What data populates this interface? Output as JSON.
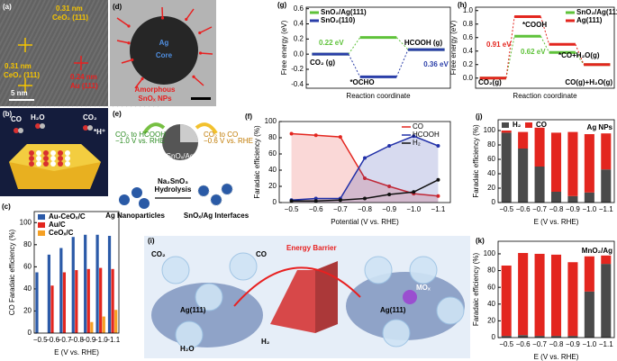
{
  "panels": {
    "a": {
      "label": "(a)",
      "texts": [
        "0.31 nm",
        "CeO₂ (111)",
        "0.31 nm",
        "CeO₂ (111)",
        "0.24 nm",
        "Au (111)",
        "5 nm"
      ]
    },
    "b": {
      "label": "(b)",
      "texts": [
        "CO",
        "H₂O",
        "CO₂",
        "*H⁺"
      ]
    },
    "d": {
      "label": "(d)",
      "texts": [
        "Ag",
        "Core",
        "Amorphous",
        "SnOₓ NPs"
      ]
    },
    "e": {
      "label": "(e)",
      "texts": [
        "CO₂ to HCOOH",
        "−1.0 V vs. RHE",
        "CO₂ to CO",
        "−0.6 V vs. RHE",
        "SnOₓ/Ag",
        "Na₂SnO₃",
        "Hydrolysis",
        "Ag Nanoparticles",
        "SnOₓ/Ag Interfaces"
      ]
    },
    "i": {
      "label": "(i)",
      "texts": [
        "CO₂",
        "CO",
        "Ag(111)",
        "H₂O",
        "H₂",
        "Energy Barrier",
        "Ag(111)",
        "MOₓ"
      ]
    }
  },
  "chart_data": [
    {
      "type": "bar",
      "panel_label": "(c)",
      "ylabel": "CO Faradaic efficiency (%)",
      "xlabel": "E (V vs. RHE)",
      "categories": [
        "−0.5",
        "−0.6",
        "−0.7",
        "−0.8",
        "−0.9",
        "−1.0",
        "−1.1"
      ],
      "series": [
        {
          "name": "Au-CeOₓ/C",
          "color": "#2b5aa8",
          "values": [
            55,
            71,
            77,
            87,
            89,
            89,
            88
          ]
        },
        {
          "name": "Au/C",
          "color": "#e3261f",
          "values": [
            null,
            43,
            55,
            57,
            58,
            59,
            58
          ]
        },
        {
          "name": "CeOₓ/C",
          "color": "#f5a024",
          "values": [
            null,
            null,
            null,
            null,
            10,
            15,
            21
          ]
        }
      ],
      "ylim": [
        0,
        110
      ],
      "yticks": [
        0,
        20,
        40,
        60,
        80,
        100
      ],
      "legend": "upper left"
    },
    {
      "type": "line",
      "panel_label": "(f)",
      "ylabel": "Faradaic efficiency (%)",
      "xlabel": "Potential (V vs. RHE)",
      "categories": [
        "−0.5",
        "−0.6",
        "−0.7",
        "−0.8",
        "−0.9",
        "−1.0",
        "−1.1"
      ],
      "series": [
        {
          "name": "CO",
          "color": "#e3261f",
          "values": [
            85,
            83,
            81,
            30,
            20,
            11,
            8
          ]
        },
        {
          "name": "HCOOH",
          "color": "#2130a8",
          "values": [
            3,
            5,
            5,
            55,
            70,
            82,
            70
          ]
        },
        {
          "name": "H₂",
          "color": "#111111",
          "values": [
            2,
            2,
            3,
            5,
            10,
            13,
            28
          ]
        }
      ],
      "ylim": [
        0,
        100
      ],
      "yticks": [
        0,
        20,
        40,
        60,
        80,
        100
      ],
      "legend": "upper right"
    },
    {
      "type": "energy",
      "panel_label": "(g)",
      "ylabel": "Free energy (eV)",
      "xlabel": "Reaction coordinate",
      "series": [
        {
          "name": "SnO₂/Ag(111)",
          "color": "#5fc23a",
          "values": [
            0,
            0.22,
            0.06
          ]
        },
        {
          "name": "SnO₂(110)",
          "color": "#2a3ea8",
          "values": [
            0,
            -0.3,
            0.06
          ]
        }
      ],
      "annotations": [
        "CO₂ (g)",
        "*OCHO",
        "HCOOH (g)",
        "0.22 eV",
        "0.36 eV"
      ],
      "ylim": [
        -0.45,
        0.62
      ],
      "yticks": [
        -0.4,
        -0.2,
        {
          "value": 0,
          "label": "0.0"
        },
        0.2,
        0.4,
        0.6
      ],
      "legend": "upper left"
    },
    {
      "type": "energy",
      "panel_label": "(h)",
      "ylabel": "Free energy (eV)",
      "xlabel": "Reaction coordinate",
      "series": [
        {
          "name": "SnO₂/Ag(111)",
          "color": "#5fc23a",
          "values": [
            0,
            0.62,
            0.38,
            0.2
          ]
        },
        {
          "name": "Ag(111)",
          "color": "#e3261f",
          "values": [
            0,
            0.91,
            0.5,
            0.2
          ]
        }
      ],
      "annotations": [
        "CO₂(g)",
        "*COOH",
        "*CO+H₂O(g)",
        "CO(g)+H₂O(g)",
        "0.91 eV",
        "0.62 eV"
      ],
      "ylim": [
        -0.15,
        1.05
      ],
      "yticks": [
        {
          "value": 0,
          "label": "0.0"
        },
        0.2,
        0.4,
        0.6,
        0.8,
        {
          "value": 1,
          "label": "1.0"
        }
      ],
      "legend": "upper right"
    },
    {
      "type": "stacked",
      "panel_label": "(j)",
      "ylabel": "Faradaic efficiency (%)",
      "xlabel": "E (V vs. RHE)",
      "categories": [
        "−0.5",
        "−0.6",
        "−0.7",
        "−0.8",
        "−0.9",
        "−1.0",
        "−1.1"
      ],
      "series": [
        {
          "name": "H₂",
          "color": "#4a4a4a",
          "values": [
            97,
            75,
            50,
            15,
            9,
            14,
            46
          ]
        },
        {
          "name": "CO",
          "color": "#e3261f",
          "values": [
            3,
            23,
            54,
            82,
            89,
            81,
            50
          ]
        }
      ],
      "annotations": [
        "Ag NPs"
      ],
      "ylim": [
        0,
        115
      ],
      "yticks": [
        0,
        20,
        40,
        60,
        80,
        100
      ],
      "legend": "upper left"
    },
    {
      "type": "stacked",
      "panel_label": "(k)",
      "ylabel": "Faradaic efficiency (%)",
      "xlabel": "E (V vs. RHE)",
      "categories": [
        "−0.5",
        "−0.6",
        "−0.7",
        "−0.8",
        "−0.9",
        "−1.0",
        "−1.1"
      ],
      "series": [
        {
          "name": "H₂",
          "color": "#4a4a4a",
          "values": [
            2,
            3,
            2,
            2,
            2,
            55,
            88
          ]
        },
        {
          "name": "CO",
          "color": "#e3261f",
          "values": [
            84,
            98,
            98,
            97,
            88,
            42,
            10
          ]
        }
      ],
      "annotations": [
        "MnO₂/Ag"
      ],
      "ylim": [
        0,
        115
      ],
      "yticks": [
        0,
        20,
        40,
        60,
        80,
        100
      ],
      "legend": "none"
    }
  ]
}
